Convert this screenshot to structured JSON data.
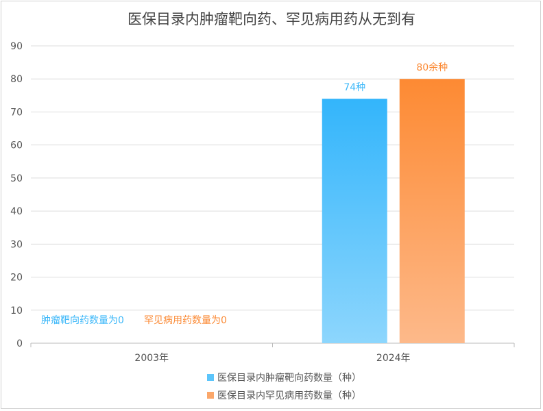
{
  "chart_data": {
    "type": "bar",
    "title": "医保目录内肿瘤靶向药、罕见病用药从无到有",
    "categories": [
      "2003年",
      "2024年"
    ],
    "series": [
      {
        "name": "医保目录内肿瘤靶向药数量（种）",
        "values": [
          0,
          74
        ],
        "color": "#3db8f9",
        "data_labels": [
          "肿瘤靶向药数量为0",
          "74种"
        ]
      },
      {
        "name": "医保目录内罕见病用药数量（种）",
        "values": [
          0,
          80
        ],
        "color": "#fb8a35",
        "data_labels": [
          "罕见病用药数量为0",
          "80余种"
        ]
      }
    ],
    "ylim": [
      0,
      90
    ],
    "yticks": [
      0,
      10,
      20,
      30,
      40,
      50,
      60,
      70,
      80,
      90
    ],
    "grid": true,
    "legend": "bottom",
    "xlabel": "",
    "ylabel": ""
  }
}
